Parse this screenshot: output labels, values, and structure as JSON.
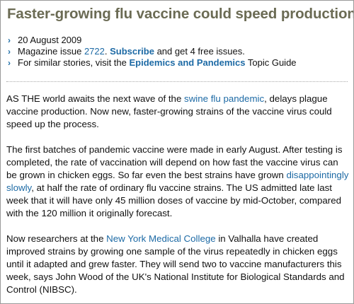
{
  "article": {
    "title": "Faster-growing flu vaccine could speed production"
  },
  "meta": {
    "date": "20 August 2009",
    "issue_prefix": "Magazine issue ",
    "issue_number": "2722",
    "issue_separator": ". ",
    "subscribe_label": "Subscribe",
    "subscribe_suffix": " and get 4 free issues.",
    "similar_prefix": "For similar stories, visit the ",
    "topic_label": "Epidemics and Pandemics",
    "similar_suffix": " Topic Guide",
    "bullet_glyph": "›"
  },
  "body": {
    "p1_a": "AS THE world awaits the next wave of the ",
    "p1_link": "swine flu pandemic",
    "p1_b": ", delays plague vaccine production. Now new, faster-growing strains of the vaccine virus could speed up the process.",
    "p2_a": "The first batches of pandemic vaccine were made in early August. After testing is completed, the rate of vaccination will depend on how fast the vaccine virus can be grown in chicken eggs. So far even the best strains have grown ",
    "p2_link": "disappointingly slowly",
    "p2_b": ", at half the rate of ordinary flu vaccine strains. The US admitted late last week that it will have only 45 million doses of vaccine by mid-October, compared with the 120 million it originally forecast.",
    "p3_a": "Now researchers at the ",
    "p3_link": "New York Medical College",
    "p3_b": " in Valhalla have created improved strains by growing one sample of the virus repeatedly in chicken eggs until it adapted and grew faster. They will send two to vaccine manufacturers this week, says John Wood of the UK's National Institute for Biological Standards and Control (NIBSC)."
  },
  "colors": {
    "title": "#6b6b54",
    "link": "#1d6aa5",
    "bullet": "#1f6fa8",
    "text": "#111111"
  }
}
